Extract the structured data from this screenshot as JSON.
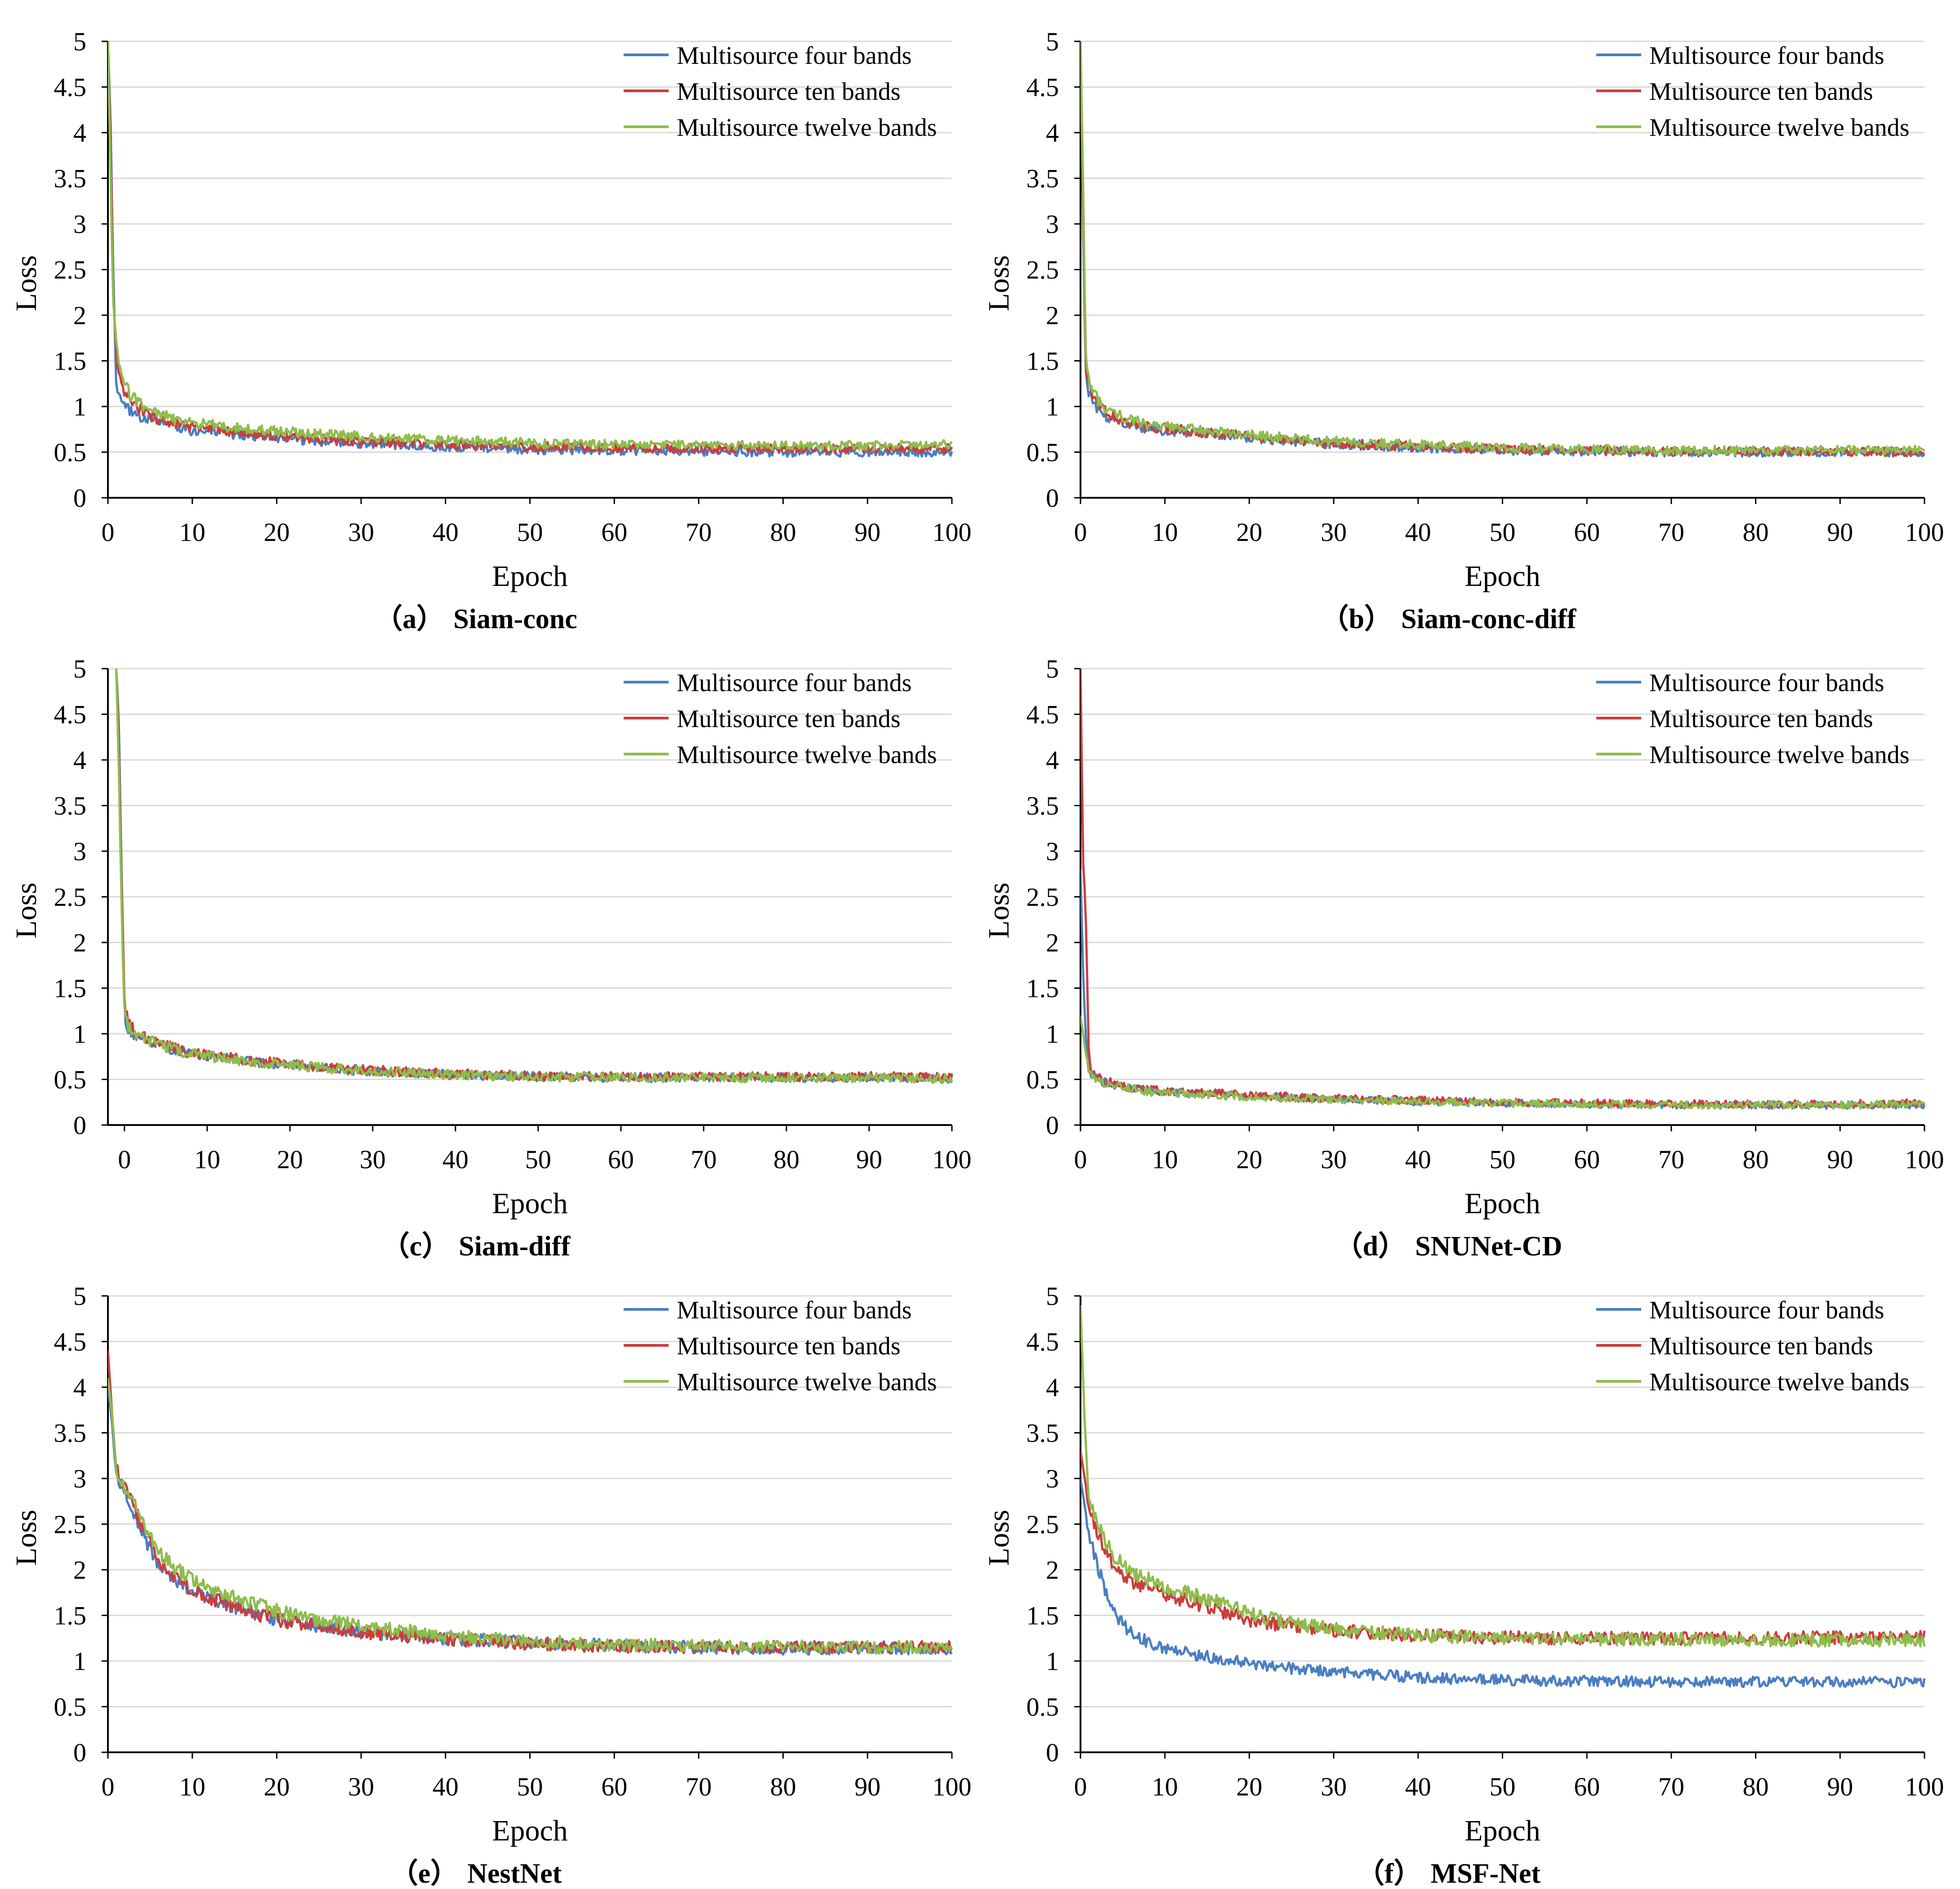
{
  "figure": {
    "legend_labels": [
      "Multisource four bands",
      "Multisource ten bands",
      "Multisource twelve bands"
    ],
    "series_colors": [
      "#4a7ec2",
      "#cc3d3d",
      "#8ebd4c"
    ]
  },
  "chart_data": [
    {
      "type": "line",
      "panel": "a",
      "caption_letter": "（a）",
      "caption_name": "Siam-conc",
      "xlabel": "Epoch",
      "ylabel": "Loss",
      "xlim": [
        0,
        100
      ],
      "ylim": [
        0,
        5
      ],
      "xticks": [
        "0",
        "10",
        "20",
        "30",
        "40",
        "50",
        "60",
        "70",
        "80",
        "90",
        "100"
      ],
      "yticks": [
        "0",
        "0.5",
        "1",
        "1.5",
        "2",
        "2.5",
        "3",
        "3.5",
        "4",
        "4.5",
        "5"
      ],
      "legend": "top-right",
      "grid": "horizontal",
      "series": [
        {
          "name": "Multisource four bands",
          "x": [
            0,
            0.3,
            0.6,
            1,
            1.5,
            2,
            3,
            5,
            8,
            10,
            15,
            20,
            25,
            30,
            40,
            50,
            60,
            70,
            80,
            90,
            100
          ],
          "y": [
            5,
            4.2,
            2.6,
            1.2,
            1.05,
            1.0,
            0.92,
            0.85,
            0.78,
            0.74,
            0.7,
            0.66,
            0.62,
            0.6,
            0.56,
            0.53,
            0.52,
            0.51,
            0.5,
            0.5,
            0.5
          ]
        },
        {
          "name": "Multisource ten bands",
          "x": [
            0,
            0.3,
            0.6,
            1,
            1.5,
            2,
            3,
            5,
            8,
            10,
            15,
            20,
            25,
            30,
            40,
            50,
            60,
            70,
            80,
            90,
            100
          ],
          "y": [
            5,
            4.0,
            2.3,
            1.5,
            1.25,
            1.15,
            1.02,
            0.9,
            0.8,
            0.77,
            0.72,
            0.68,
            0.65,
            0.62,
            0.58,
            0.56,
            0.55,
            0.54,
            0.54,
            0.54,
            0.54
          ]
        },
        {
          "name": "Multisource twelve bands",
          "x": [
            0,
            0.3,
            0.6,
            1,
            1.5,
            2,
            3,
            5,
            8,
            10,
            15,
            20,
            25,
            30,
            40,
            50,
            60,
            70,
            80,
            90,
            100
          ],
          "y": [
            5,
            3.6,
            2.2,
            1.65,
            1.35,
            1.22,
            1.1,
            0.96,
            0.85,
            0.82,
            0.77,
            0.73,
            0.7,
            0.67,
            0.63,
            0.6,
            0.58,
            0.58,
            0.57,
            0.57,
            0.59
          ]
        }
      ]
    },
    {
      "type": "line",
      "panel": "b",
      "caption_letter": "（b）",
      "caption_name": "Siam-conc-diff",
      "xlabel": "Epoch",
      "ylabel": "Loss",
      "xlim": [
        0,
        100
      ],
      "ylim": [
        0,
        5
      ],
      "xticks": [
        "0",
        "10",
        "20",
        "30",
        "40",
        "50",
        "60",
        "70",
        "80",
        "90",
        "100"
      ],
      "yticks": [
        "0",
        "0.5",
        "1",
        "1.5",
        "2",
        "2.5",
        "3",
        "3.5",
        "4",
        "4.5",
        "5"
      ],
      "legend": "top-right",
      "grid": "horizontal",
      "series": [
        {
          "name": "Multisource four bands",
          "x": [
            0,
            0.3,
            0.6,
            1,
            1.5,
            2,
            3,
            5,
            8,
            10,
            15,
            20,
            25,
            30,
            40,
            50,
            60,
            70,
            80,
            90,
            100
          ],
          "y": [
            5,
            3.0,
            1.4,
            1.15,
            1.02,
            0.97,
            0.9,
            0.82,
            0.76,
            0.74,
            0.7,
            0.66,
            0.62,
            0.59,
            0.55,
            0.52,
            0.51,
            0.5,
            0.5,
            0.5,
            0.5
          ]
        },
        {
          "name": "Multisource ten bands",
          "x": [
            0,
            0.3,
            0.6,
            1,
            1.5,
            2,
            3,
            5,
            8,
            10,
            15,
            20,
            25,
            30,
            40,
            50,
            60,
            70,
            80,
            90,
            100
          ],
          "y": [
            5,
            3.2,
            1.5,
            1.2,
            1.08,
            1.02,
            0.94,
            0.85,
            0.78,
            0.76,
            0.71,
            0.67,
            0.63,
            0.6,
            0.56,
            0.53,
            0.52,
            0.51,
            0.51,
            0.51,
            0.5
          ]
        },
        {
          "name": "Multisource twelve bands",
          "x": [
            0,
            0.3,
            0.6,
            1,
            1.5,
            2,
            3,
            5,
            8,
            10,
            15,
            20,
            25,
            30,
            40,
            50,
            60,
            70,
            80,
            90,
            100
          ],
          "y": [
            5,
            3.5,
            1.6,
            1.3,
            1.15,
            1.08,
            0.98,
            0.88,
            0.8,
            0.78,
            0.73,
            0.69,
            0.65,
            0.62,
            0.58,
            0.55,
            0.53,
            0.52,
            0.52,
            0.52,
            0.52
          ]
        }
      ]
    },
    {
      "type": "line",
      "panel": "c",
      "caption_letter": "（c）",
      "caption_name": "Siam-diff",
      "xlabel": "Epoch",
      "ylabel": "Loss",
      "xlim": [
        -2,
        100
      ],
      "ylim": [
        0,
        5
      ],
      "xticks": [
        "0",
        "10",
        "20",
        "30",
        "40",
        "50",
        "60",
        "70",
        "80",
        "90",
        "100"
      ],
      "yticks": [
        "0",
        "0.5",
        "1",
        "1.5",
        "2",
        "2.5",
        "3",
        "3.5",
        "4",
        "4.5",
        "5"
      ],
      "legend": "top-right",
      "grid": "horizontal",
      "series": [
        {
          "name": "Multisource four bands",
          "x": [
            -1,
            -0.7,
            -0.4,
            0,
            0.5,
            1,
            2,
            5,
            8,
            10,
            15,
            20,
            25,
            30,
            40,
            50,
            60,
            70,
            80,
            90,
            100
          ],
          "y": [
            5,
            4.5,
            3.0,
            1.2,
            1.05,
            1.0,
            0.95,
            0.85,
            0.78,
            0.75,
            0.7,
            0.66,
            0.62,
            0.59,
            0.55,
            0.53,
            0.52,
            0.52,
            0.52,
            0.52,
            0.51
          ]
        },
        {
          "name": "Multisource ten bands",
          "x": [
            -1,
            -0.7,
            -0.4,
            0,
            0.5,
            1,
            2,
            5,
            8,
            10,
            15,
            20,
            25,
            30,
            40,
            50,
            60,
            70,
            80,
            90,
            100
          ],
          "y": [
            5,
            4.3,
            2.8,
            1.3,
            1.12,
            1.05,
            0.98,
            0.87,
            0.79,
            0.76,
            0.71,
            0.67,
            0.63,
            0.6,
            0.56,
            0.54,
            0.53,
            0.53,
            0.53,
            0.53,
            0.52
          ]
        },
        {
          "name": "Multisource twelve bands",
          "x": [
            -1,
            -0.7,
            -0.4,
            0,
            0.5,
            1,
            2,
            5,
            8,
            10,
            15,
            20,
            25,
            30,
            40,
            50,
            60,
            70,
            80,
            90,
            100
          ],
          "y": [
            5,
            4.0,
            2.6,
            1.25,
            1.08,
            1.02,
            0.96,
            0.86,
            0.78,
            0.75,
            0.7,
            0.66,
            0.62,
            0.59,
            0.55,
            0.53,
            0.52,
            0.52,
            0.52,
            0.52,
            0.51
          ]
        }
      ]
    },
    {
      "type": "line",
      "panel": "d",
      "caption_letter": "（d）",
      "caption_name": "SNUNet-CD",
      "xlabel": "Epoch",
      "ylabel": "Loss",
      "xlim": [
        0,
        100
      ],
      "ylim": [
        0,
        5
      ],
      "xticks": [
        "0",
        "10",
        "20",
        "30",
        "40",
        "50",
        "60",
        "70",
        "80",
        "90",
        "100"
      ],
      "yticks": [
        "0",
        "0.5",
        "1",
        "1.5",
        "2",
        "2.5",
        "3",
        "3.5",
        "4",
        "4.5",
        "5"
      ],
      "legend": "top-right",
      "grid": "horizontal",
      "series": [
        {
          "name": "Multisource four bands",
          "x": [
            0,
            0.3,
            0.6,
            1,
            1.5,
            2,
            3,
            5,
            8,
            10,
            15,
            20,
            25,
            30,
            40,
            50,
            60,
            70,
            80,
            90,
            100
          ],
          "y": [
            2.8,
            1.7,
            1.0,
            0.6,
            0.52,
            0.5,
            0.46,
            0.42,
            0.38,
            0.36,
            0.34,
            0.32,
            0.3,
            0.29,
            0.26,
            0.24,
            0.23,
            0.22,
            0.22,
            0.22,
            0.22
          ]
        },
        {
          "name": "Multisource ten bands",
          "x": [
            0,
            0.3,
            0.6,
            1,
            1.5,
            2,
            3,
            5,
            8,
            10,
            15,
            20,
            25,
            30,
            40,
            50,
            60,
            70,
            80,
            90,
            100
          ],
          "y": [
            5,
            2.9,
            2.4,
            0.7,
            0.55,
            0.52,
            0.48,
            0.43,
            0.39,
            0.37,
            0.35,
            0.33,
            0.31,
            0.29,
            0.27,
            0.25,
            0.24,
            0.23,
            0.23,
            0.23,
            0.24
          ]
        },
        {
          "name": "Multisource twelve bands",
          "x": [
            0,
            0.3,
            0.6,
            1,
            1.5,
            2,
            3,
            5,
            8,
            10,
            15,
            20,
            25,
            30,
            40,
            50,
            60,
            70,
            80,
            90,
            100
          ],
          "y": [
            1.2,
            1.0,
            0.8,
            0.58,
            0.5,
            0.48,
            0.45,
            0.41,
            0.37,
            0.35,
            0.33,
            0.31,
            0.29,
            0.28,
            0.26,
            0.24,
            0.23,
            0.22,
            0.22,
            0.22,
            0.23
          ]
        }
      ]
    },
    {
      "type": "line",
      "panel": "e",
      "caption_letter": "（e）",
      "caption_name": "NestNet",
      "xlabel": "Epoch",
      "ylabel": "Loss",
      "xlim": [
        0,
        100
      ],
      "ylim": [
        0,
        5
      ],
      "xticks": [
        "0",
        "10",
        "20",
        "30",
        "40",
        "50",
        "60",
        "70",
        "80",
        "90",
        "100"
      ],
      "yticks": [
        "0",
        "0.5",
        "1",
        "1.5",
        "2",
        "2.5",
        "3",
        "3.5",
        "4",
        "4.5",
        "5"
      ],
      "legend": "top-right",
      "grid": "horizontal",
      "series": [
        {
          "name": "Multisource four bands",
          "x": [
            0,
            0.5,
            1,
            2,
            3,
            4,
            5,
            6,
            8,
            10,
            12,
            15,
            20,
            25,
            30,
            40,
            50,
            60,
            70,
            80,
            90,
            100
          ],
          "y": [
            4.0,
            3.6,
            3.0,
            2.85,
            2.6,
            2.4,
            2.2,
            2.05,
            1.9,
            1.78,
            1.7,
            1.6,
            1.45,
            1.38,
            1.32,
            1.25,
            1.2,
            1.17,
            1.15,
            1.14,
            1.14,
            1.14
          ]
        },
        {
          "name": "Multisource ten bands",
          "x": [
            0,
            0.5,
            1,
            2,
            3,
            4,
            5,
            6,
            8,
            10,
            12,
            15,
            20,
            25,
            30,
            40,
            50,
            60,
            70,
            80,
            90,
            100
          ],
          "y": [
            4.4,
            3.7,
            3.1,
            2.9,
            2.7,
            2.5,
            2.3,
            2.1,
            1.92,
            1.78,
            1.7,
            1.6,
            1.45,
            1.38,
            1.32,
            1.24,
            1.19,
            1.16,
            1.15,
            1.15,
            1.15,
            1.15
          ]
        },
        {
          "name": "Multisource twelve bands",
          "x": [
            0,
            0.5,
            1,
            2,
            3,
            4,
            5,
            6,
            8,
            10,
            12,
            15,
            20,
            25,
            30,
            40,
            50,
            60,
            70,
            80,
            90,
            100
          ],
          "y": [
            4.1,
            3.7,
            3.1,
            2.92,
            2.75,
            2.55,
            2.35,
            2.2,
            2.02,
            1.88,
            1.8,
            1.7,
            1.55,
            1.45,
            1.38,
            1.28,
            1.22,
            1.18,
            1.17,
            1.16,
            1.15,
            1.15
          ]
        }
      ]
    },
    {
      "type": "line",
      "panel": "f",
      "caption_letter": "（f）",
      "caption_name": "MSF-Net",
      "xlabel": "Epoch",
      "ylabel": "Loss",
      "xlim": [
        0,
        100
      ],
      "ylim": [
        0,
        5
      ],
      "xticks": [
        "0",
        "10",
        "20",
        "30",
        "40",
        "50",
        "60",
        "70",
        "80",
        "90",
        "100"
      ],
      "yticks": [
        "0",
        "0.5",
        "1",
        "1.5",
        "2",
        "2.5",
        "3",
        "3.5",
        "4",
        "4.5",
        "5"
      ],
      "legend": "top-right",
      "grid": "horizontal",
      "series": [
        {
          "name": "Multisource four bands",
          "x": [
            0,
            0.5,
            1,
            2,
            3,
            4,
            5,
            6,
            8,
            10,
            12,
            15,
            20,
            25,
            30,
            40,
            50,
            60,
            70,
            80,
            90,
            100
          ],
          "y": [
            3.0,
            2.7,
            2.4,
            2.05,
            1.75,
            1.55,
            1.4,
            1.3,
            1.2,
            1.15,
            1.1,
            1.05,
            0.97,
            0.92,
            0.88,
            0.82,
            0.79,
            0.78,
            0.77,
            0.77,
            0.77,
            0.77
          ]
        },
        {
          "name": "Multisource ten bands",
          "x": [
            0,
            0.5,
            1,
            2,
            3,
            4,
            5,
            6,
            8,
            10,
            12,
            15,
            20,
            25,
            30,
            40,
            50,
            60,
            70,
            80,
            90,
            100
          ],
          "y": [
            3.3,
            3.0,
            2.7,
            2.4,
            2.2,
            2.05,
            1.95,
            1.88,
            1.8,
            1.73,
            1.68,
            1.6,
            1.45,
            1.38,
            1.33,
            1.28,
            1.26,
            1.25,
            1.25,
            1.25,
            1.26,
            1.27
          ]
        },
        {
          "name": "Multisource twelve bands",
          "x": [
            0,
            0.5,
            1,
            2,
            3,
            4,
            5,
            6,
            8,
            10,
            12,
            15,
            20,
            25,
            30,
            40,
            50,
            60,
            70,
            80,
            90,
            100
          ],
          "y": [
            4.9,
            3.6,
            2.8,
            2.5,
            2.3,
            2.15,
            2.05,
            1.97,
            1.9,
            1.82,
            1.76,
            1.68,
            1.52,
            1.42,
            1.35,
            1.28,
            1.25,
            1.24,
            1.24,
            1.23,
            1.23,
            1.23
          ]
        }
      ]
    }
  ]
}
